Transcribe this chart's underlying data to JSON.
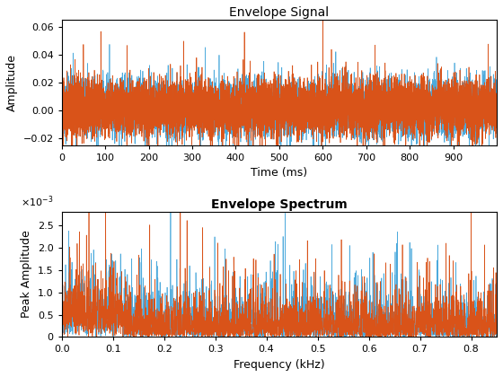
{
  "title1": "Envelope Signal",
  "xlabel1": "Time (ms)",
  "ylabel1": "Amplitude",
  "ylim1": [
    -0.025,
    0.065
  ],
  "yticks1": [
    -0.02,
    0.0,
    0.02,
    0.04,
    0.06
  ],
  "xlim1": [
    0,
    1000
  ],
  "xticks1": [
    0,
    100,
    200,
    300,
    400,
    500,
    600,
    700,
    800,
    900
  ],
  "title2": "Envelope Spectrum",
  "xlabel2": "Frequency (kHz)",
  "ylabel2": "Peak Amplitude",
  "ylim2": [
    0,
    0.0028
  ],
  "yticks2": [
    0,
    0.0005,
    0.001,
    0.0015,
    0.002,
    0.0025
  ],
  "xlim2": [
    0,
    0.85
  ],
  "xticks2": [
    0,
    0.1,
    0.2,
    0.3,
    0.4,
    0.5,
    0.6,
    0.7,
    0.8
  ],
  "color_blue": "#4DAADC",
  "color_orange": "#D95319",
  "linewidth_signal": 0.5,
  "linewidth_spectrum": 0.5,
  "seed": 42,
  "n_signal": 8000,
  "n_spectrum": 3000,
  "signal_time_max": 1000,
  "spectrum_freq_max": 0.85,
  "figsize": [
    5.6,
    4.2
  ],
  "dpi": 100
}
